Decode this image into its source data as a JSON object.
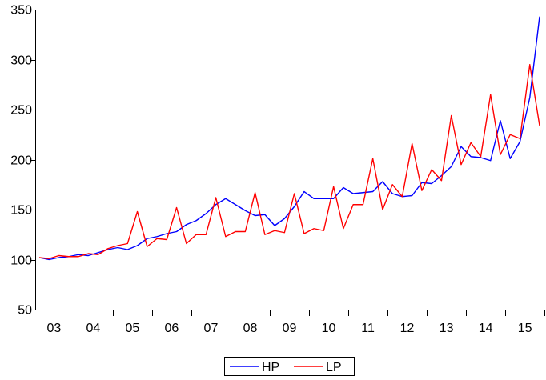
{
  "chart_data": {
    "type": "line",
    "title": "",
    "xlabel": "",
    "ylabel": "",
    "ylim": [
      50,
      350
    ],
    "yticks": [
      50,
      100,
      150,
      200,
      250,
      300,
      350
    ],
    "x_tick_labels": [
      "03",
      "04",
      "05",
      "06",
      "07",
      "08",
      "09",
      "10",
      "11",
      "12",
      "13",
      "14",
      "15"
    ],
    "x_start": "2003Q1",
    "frequency": "quarterly",
    "grid": false,
    "legend_position": "bottom-center",
    "colors": {
      "HP": "#0000ff",
      "LP": "#ff0000"
    },
    "series": [
      {
        "name": "HP",
        "values": [
          102,
          100,
          102,
          103,
          105,
          104,
          107,
          110,
          112,
          110,
          114,
          121,
          123,
          126,
          128,
          135,
          139,
          146,
          155,
          161,
          155,
          149,
          144,
          145,
          134,
          141,
          153,
          168,
          161,
          161,
          161,
          172,
          166,
          167,
          168,
          178,
          166,
          163,
          164,
          177,
          176,
          184,
          193,
          213,
          203,
          202,
          199,
          239,
          201,
          218,
          262,
          343
        ]
      },
      {
        "name": "LP",
        "values": [
          102,
          101,
          104,
          103,
          103,
          106,
          105,
          111,
          114,
          116,
          148,
          113,
          121,
          120,
          152,
          116,
          125,
          125,
          162,
          123,
          128,
          128,
          167,
          125,
          129,
          127,
          166,
          126,
          131,
          129,
          173,
          131,
          155,
          155,
          201,
          150,
          175,
          163,
          216,
          169,
          190,
          179,
          244,
          195,
          217,
          203,
          265,
          205,
          225,
          221,
          295,
          234
        ]
      }
    ]
  }
}
